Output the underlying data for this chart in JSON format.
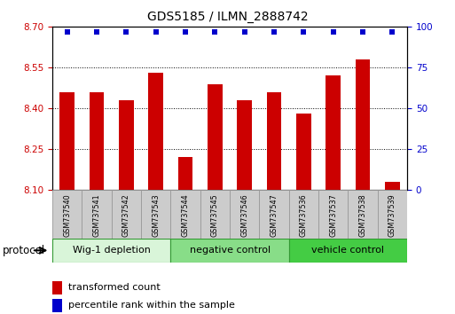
{
  "title": "GDS5185 / ILMN_2888742",
  "samples": [
    "GSM737540",
    "GSM737541",
    "GSM737542",
    "GSM737543",
    "GSM737544",
    "GSM737545",
    "GSM737546",
    "GSM737547",
    "GSM737536",
    "GSM737537",
    "GSM737538",
    "GSM737539"
  ],
  "transformed_counts": [
    8.46,
    8.46,
    8.43,
    8.53,
    8.22,
    8.49,
    8.43,
    8.46,
    8.38,
    8.52,
    8.58,
    8.13
  ],
  "groups": [
    {
      "label": "Wig-1 depletion",
      "start": 0,
      "end": 3,
      "color": "#d9f5d9"
    },
    {
      "label": "negative control",
      "start": 4,
      "end": 7,
      "color": "#88dd88"
    },
    {
      "label": "vehicle control",
      "start": 8,
      "end": 11,
      "color": "#44cc44"
    }
  ],
  "ylim_left": [
    8.1,
    8.7
  ],
  "ylim_right": [
    0,
    100
  ],
  "yticks_left": [
    8.1,
    8.25,
    8.4,
    8.55,
    8.7
  ],
  "yticks_right": [
    0,
    25,
    50,
    75,
    100
  ],
  "bar_color": "#cc0000",
  "dot_color": "#0000cc",
  "bar_width": 0.5,
  "plot_bg_color": "#ffffff",
  "legend_red_label": "transformed count",
  "legend_blue_label": "percentile rank within the sample",
  "protocol_label": "protocol"
}
